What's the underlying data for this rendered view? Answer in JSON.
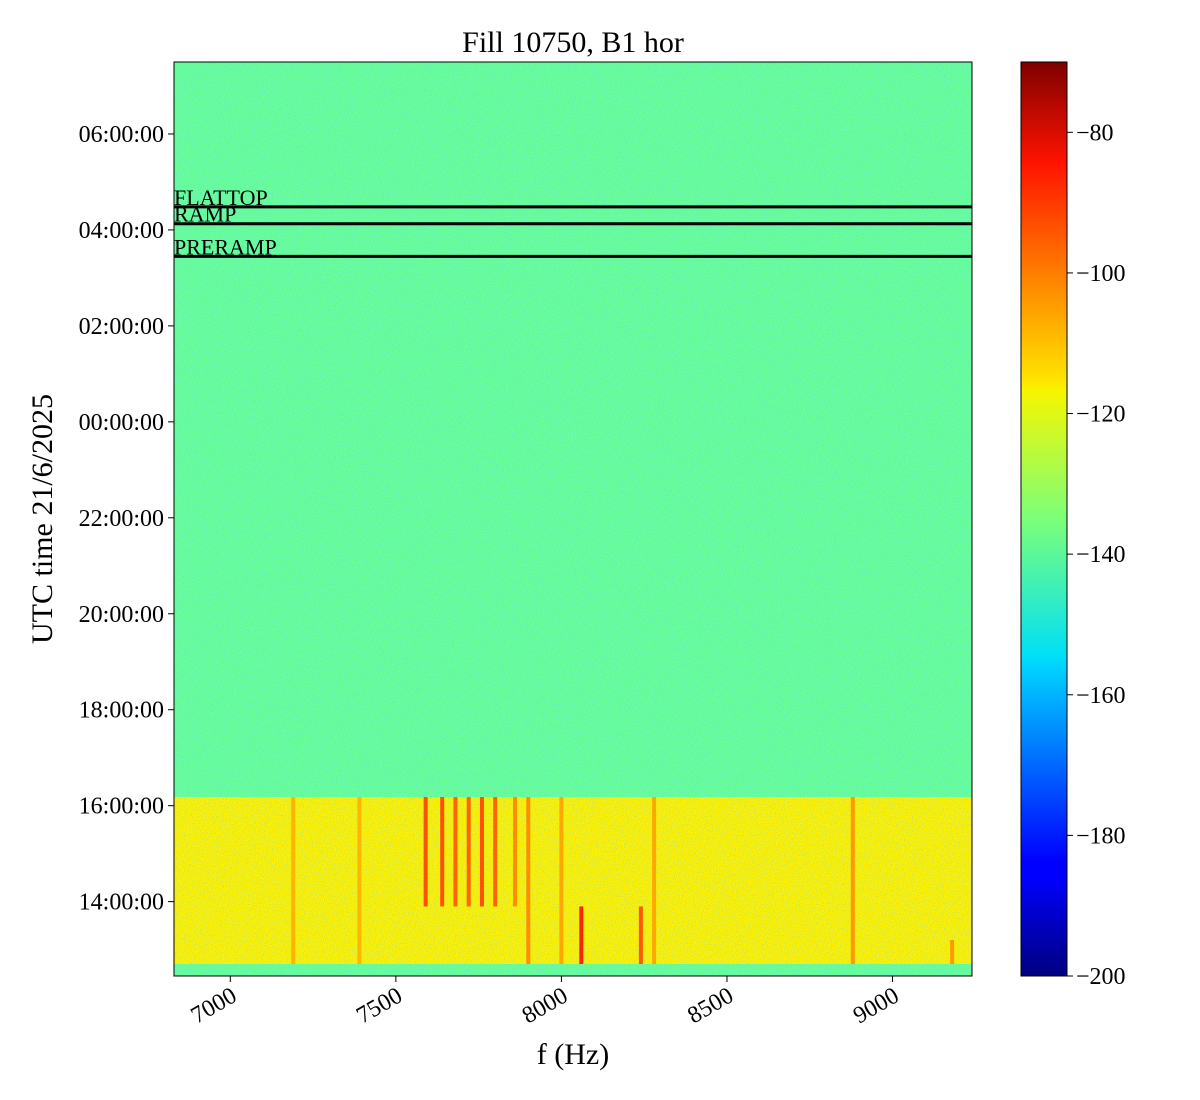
{
  "chart_data": {
    "type": "heatmap",
    "title": "Fill 10750, B1 hor",
    "xlabel": "f (Hz)",
    "ylabel": "UTC time 21/6/2025",
    "xlim": [
      6830,
      9240
    ],
    "x_ticks": [
      {
        "value": 7000,
        "label": "7000"
      },
      {
        "value": 7500,
        "label": "7500"
      },
      {
        "value": 8000,
        "label": "8000"
      },
      {
        "value": 8500,
        "label": "8500"
      },
      {
        "value": 9000,
        "label": "9000"
      }
    ],
    "ylim_hours": [
      12.45,
      31.5
    ],
    "y_ticks": [
      {
        "value": 14,
        "label": "14:00:00"
      },
      {
        "value": 16,
        "label": "16:00:00"
      },
      {
        "value": 18,
        "label": "18:00:00"
      },
      {
        "value": 20,
        "label": "20:00:00"
      },
      {
        "value": 22,
        "label": "22:00:00"
      },
      {
        "value": 24,
        "label": "00:00:00"
      },
      {
        "value": 26,
        "label": "02:00:00"
      },
      {
        "value": 28,
        "label": "04:00:00"
      },
      {
        "value": 30,
        "label": "06:00:00"
      }
    ],
    "colorbar": {
      "colormap": "jet",
      "range": [
        -200,
        -70
      ],
      "ticks": [
        {
          "value": -80,
          "label": "−80"
        },
        {
          "value": -100,
          "label": "−100"
        },
        {
          "value": -120,
          "label": "−120"
        },
        {
          "value": -140,
          "label": "−140"
        },
        {
          "value": -160,
          "label": "−160"
        },
        {
          "value": -180,
          "label": "−180"
        },
        {
          "value": -200,
          "label": "−200"
        }
      ]
    },
    "regions": [
      {
        "t_start": 12.45,
        "t_end": 12.7,
        "level_db": -138
      },
      {
        "t_start": 12.7,
        "t_end": 16.18,
        "level_db": -117
      },
      {
        "t_start": 16.18,
        "t_end": 31.5,
        "level_db": -138
      }
    ],
    "vertical_lines": [
      {
        "f": 7190,
        "t_start": 12.7,
        "t_end": 16.18,
        "level_db": -108
      },
      {
        "f": 7390,
        "t_start": 12.7,
        "t_end": 16.18,
        "level_db": -108
      },
      {
        "f": 7590,
        "t_start": 13.9,
        "t_end": 16.18,
        "level_db": -93
      },
      {
        "f": 7640,
        "t_start": 13.9,
        "t_end": 16.18,
        "level_db": -93
      },
      {
        "f": 7680,
        "t_start": 13.9,
        "t_end": 16.18,
        "level_db": -96
      },
      {
        "f": 7720,
        "t_start": 13.9,
        "t_end": 16.18,
        "level_db": -96
      },
      {
        "f": 7760,
        "t_start": 13.9,
        "t_end": 16.18,
        "level_db": -93
      },
      {
        "f": 7800,
        "t_start": 13.9,
        "t_end": 16.18,
        "level_db": -96
      },
      {
        "f": 7860,
        "t_start": 13.9,
        "t_end": 16.18,
        "level_db": -102
      },
      {
        "f": 7900,
        "t_start": 12.7,
        "t_end": 16.18,
        "level_db": -102
      },
      {
        "f": 8000,
        "t_start": 12.7,
        "t_end": 16.18,
        "level_db": -106
      },
      {
        "f": 8060,
        "t_start": 12.7,
        "t_end": 13.9,
        "level_db": -86
      },
      {
        "f": 8240,
        "t_start": 12.7,
        "t_end": 13.9,
        "level_db": -94
      },
      {
        "f": 8280,
        "t_start": 12.7,
        "t_end": 16.18,
        "level_db": -106
      },
      {
        "f": 8880,
        "t_start": 12.7,
        "t_end": 16.18,
        "level_db": -104
      },
      {
        "f": 9180,
        "t_start": 12.7,
        "t_end": 13.2,
        "level_db": -104
      }
    ],
    "events": [
      {
        "label": "FLATTOP",
        "time_hours": 28.48
      },
      {
        "label": "RAMP",
        "time_hours": 28.13
      },
      {
        "label": "PRERAMP",
        "time_hours": 27.45
      }
    ]
  }
}
